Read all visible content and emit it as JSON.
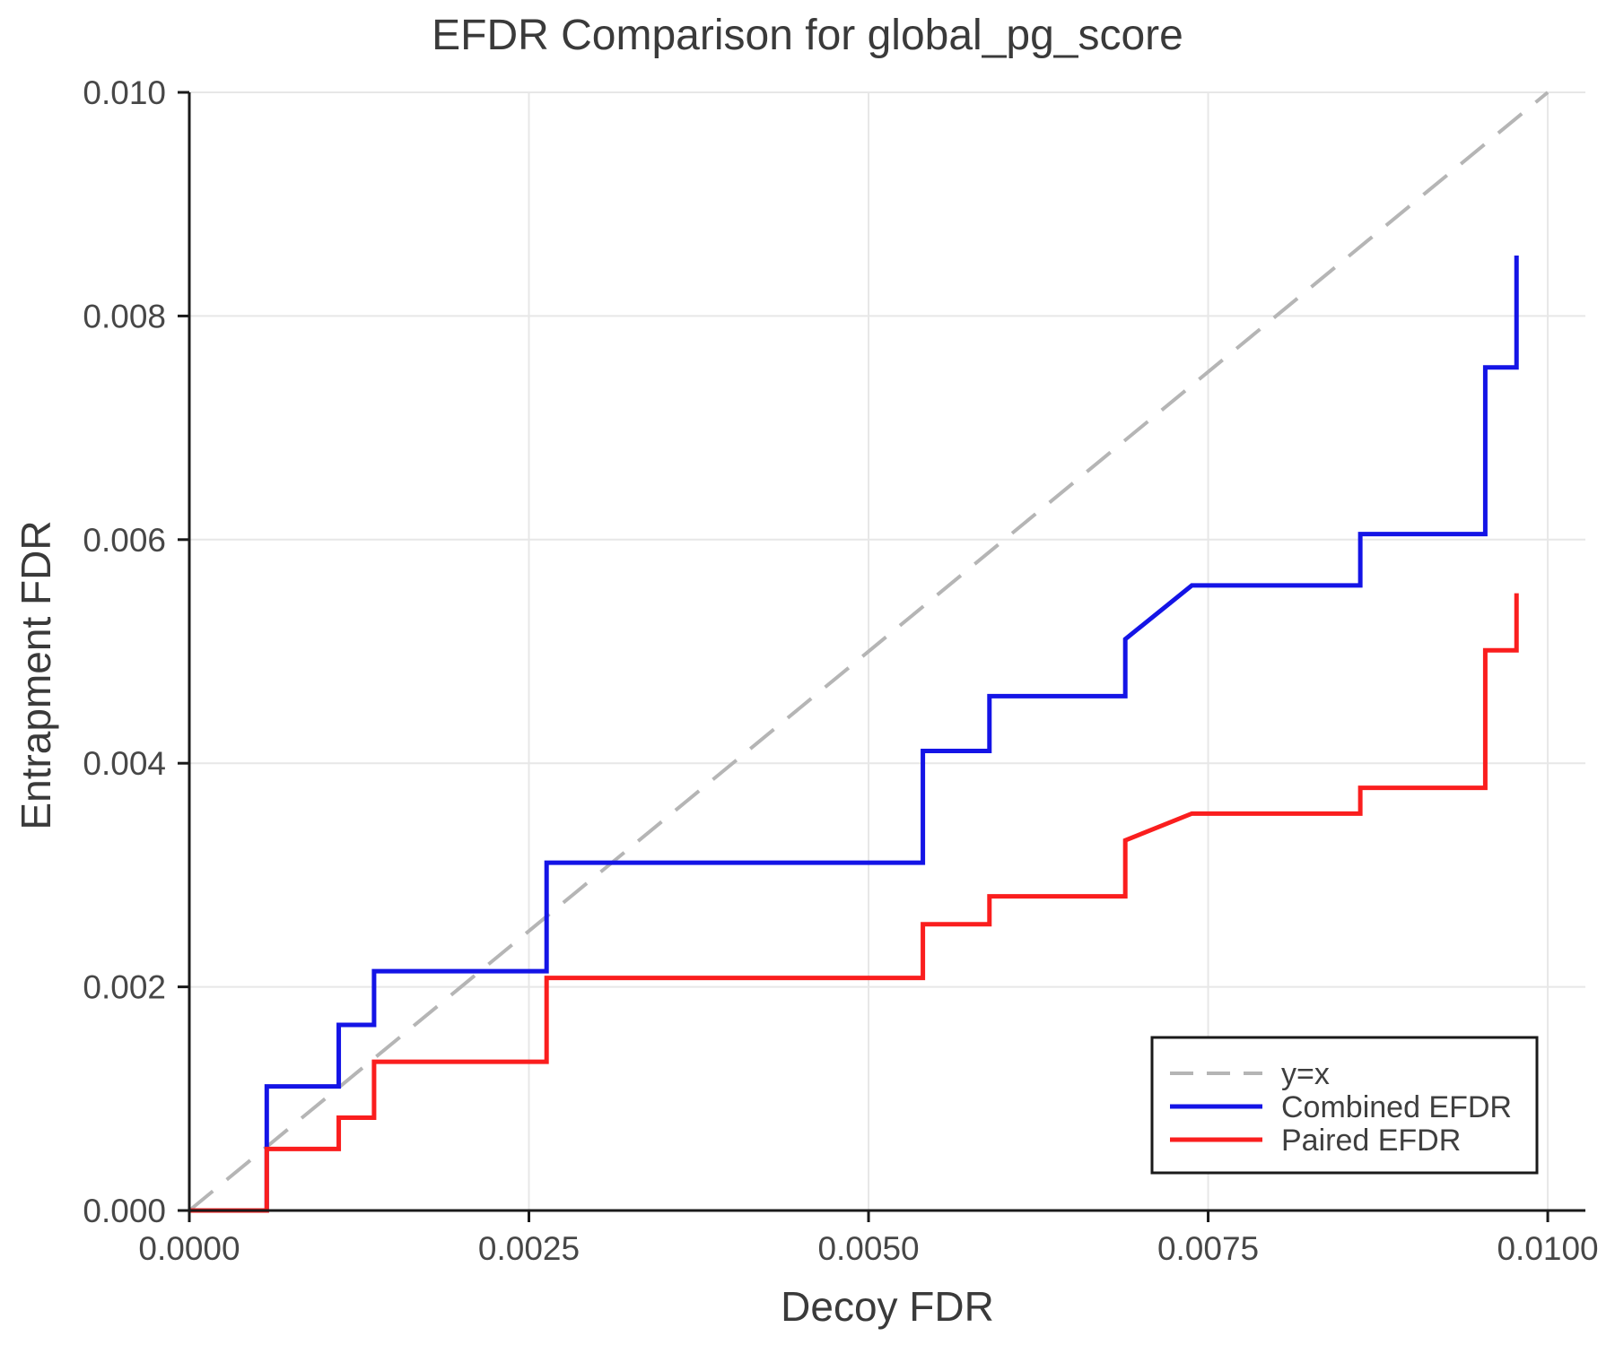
{
  "chart_data": {
    "type": "line",
    "title": "EFDR Comparison for global_pg_score",
    "xlabel": "Decoy FDR",
    "ylabel": "Entrapment FDR",
    "xlim": [
      0,
      0.010277
    ],
    "ylim": [
      0,
      0.01
    ],
    "grid": true,
    "x_ticks": [
      0,
      0.0025,
      0.005,
      0.0075,
      0.01
    ],
    "x_tick_labels": [
      "0.0000",
      "0.0025",
      "0.0050",
      "0.0075",
      "0.0100"
    ],
    "y_ticks": [
      0,
      0.002,
      0.004,
      0.006,
      0.008,
      0.01
    ],
    "y_tick_labels": [
      "0.000",
      "0.002",
      "0.004",
      "0.006",
      "0.008",
      "0.010"
    ],
    "legend_position": "lower right",
    "series": [
      {
        "name": "y=x",
        "style": "dashed",
        "color": "#b5b5b5",
        "width": 4,
        "points": [
          [
            0,
            0
          ],
          [
            0.01,
            0.01
          ]
        ]
      },
      {
        "name": "Combined EFDR",
        "style": "solid",
        "color": "#1414e6",
        "width": 5,
        "points": [
          [
            0,
            0
          ],
          [
            0.00057,
            0
          ],
          [
            0.00057,
            0.00111
          ],
          [
            0.0011,
            0.00111
          ],
          [
            0.0011,
            0.00166
          ],
          [
            0.00136,
            0.00166
          ],
          [
            0.00136,
            0.00214
          ],
          [
            0.00263,
            0.00214
          ],
          [
            0.00263,
            0.00311
          ],
          [
            0.0054,
            0.00311
          ],
          [
            0.0054,
            0.00411
          ],
          [
            0.00589,
            0.00411
          ],
          [
            0.00589,
            0.0046
          ],
          [
            0.00689,
            0.0046
          ],
          [
            0.00689,
            0.00511
          ],
          [
            0.00738,
            0.00559
          ],
          [
            0.00862,
            0.00559
          ],
          [
            0.00862,
            0.00605
          ],
          [
            0.00954,
            0.00605
          ],
          [
            0.00954,
            0.00754
          ],
          [
            0.00977,
            0.00754
          ],
          [
            0.00977,
            0.00854
          ]
        ]
      },
      {
        "name": "Paired EFDR",
        "style": "solid",
        "color": "#fa1e1e",
        "width": 5,
        "points": [
          [
            0,
            0
          ],
          [
            0.00057,
            0
          ],
          [
            0.00057,
            0.00055
          ],
          [
            0.0011,
            0.00055
          ],
          [
            0.0011,
            0.00083
          ],
          [
            0.00136,
            0.00083
          ],
          [
            0.00136,
            0.00133
          ],
          [
            0.00263,
            0.00133
          ],
          [
            0.00263,
            0.00208
          ],
          [
            0.0054,
            0.00208
          ],
          [
            0.0054,
            0.00256
          ],
          [
            0.00589,
            0.00256
          ],
          [
            0.00589,
            0.00281
          ],
          [
            0.00689,
            0.00281
          ],
          [
            0.00689,
            0.00331
          ],
          [
            0.00738,
            0.00355
          ],
          [
            0.00862,
            0.00355
          ],
          [
            0.00862,
            0.00378
          ],
          [
            0.00954,
            0.00378
          ],
          [
            0.00954,
            0.00501
          ],
          [
            0.00977,
            0.00501
          ],
          [
            0.00977,
            0.00552
          ]
        ]
      }
    ]
  },
  "style": {
    "grid_color": "#e7e7e7",
    "spine_color": "#1a1a1a",
    "tick_color": "#1a1a1a",
    "tick_label_color": "#474747",
    "legend_border_color": "#1a1a1a",
    "legend_bg_color": "#ffffff",
    "legend_text_color": "#3f3f3f"
  }
}
